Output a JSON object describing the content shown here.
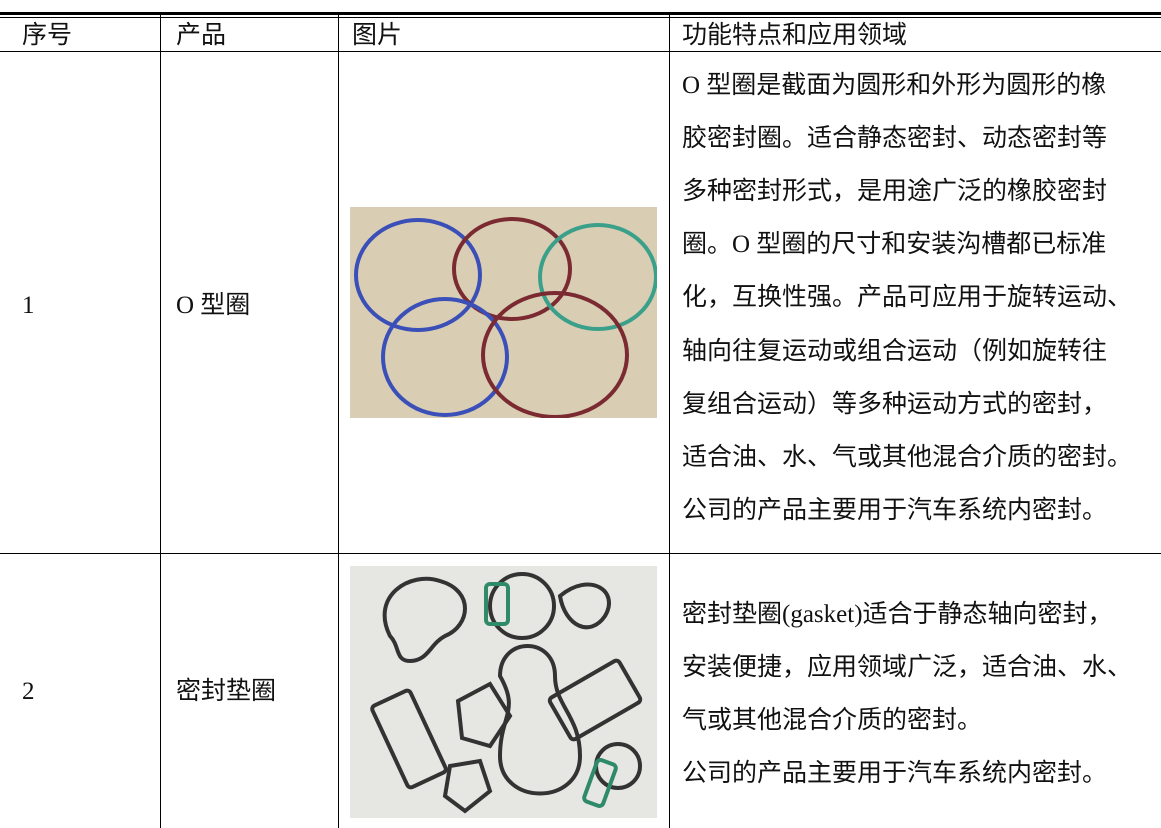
{
  "header": [
    "序号",
    "产品",
    "图片",
    "功能特点和应用领域"
  ],
  "rows": [
    {
      "index": "1",
      "product": "O 型圈",
      "description": [
        "O 型圈是截面为圆形和外形为圆形的橡",
        "胶密封圈。适合静态密封、动态密封等",
        "多种密封形式，是用途广泛的橡胶密封",
        "圈。O 型圈的尺寸和安装沟槽都已标准",
        "化，互换性强。产品可应用于旋转运动、",
        "轴向往复运动或组合运动（例如旋转往",
        "复组合运动）等多种运动方式的密封，",
        "适合油、水、气或其他混合介质的密封。",
        "公司的产品主要用于汽车系统内密封。"
      ]
    },
    {
      "index": "2",
      "product": "密封垫圈",
      "description": [
        "密封垫圈(gasket)适合于静态轴向密封，",
        "安装便捷，应用领域广泛，适合油、水、",
        "气或其他混合介质的密封。",
        "公司的产品主要用于汽车系统内密封。"
      ]
    }
  ]
}
